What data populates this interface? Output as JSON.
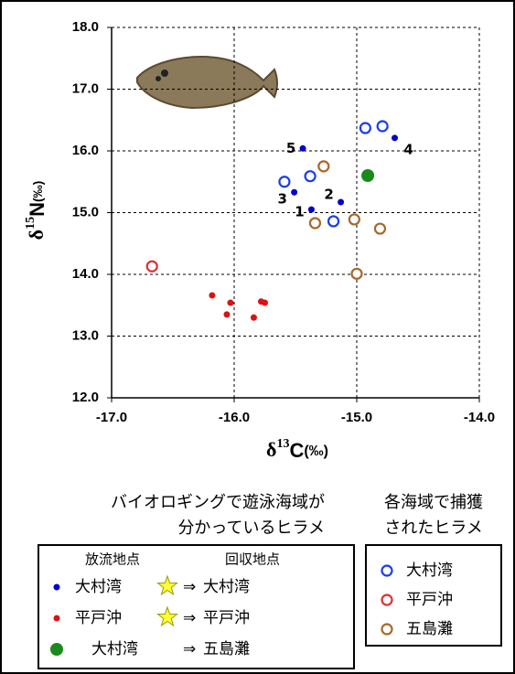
{
  "chart_data": {
    "type": "scatter",
    "y_label": {
      "prefix": "δ",
      "sup": "15",
      "main": "N",
      "unit": "(‰)"
    },
    "x_label": {
      "prefix": "δ",
      "sup": "13",
      "main": "C",
      "unit": "(‰)"
    },
    "xlim": [
      -17,
      -14
    ],
    "ylim": [
      12,
      18
    ],
    "xticks": [
      {
        "value": -17,
        "label": "-17.0"
      },
      {
        "value": -16,
        "label": "-16.0"
      },
      {
        "value": -15,
        "label": "-15.0"
      },
      {
        "value": -14,
        "label": "-14.0"
      }
    ],
    "yticks": [
      {
        "value": 12,
        "label": "12.0"
      },
      {
        "value": 13,
        "label": "13.0"
      },
      {
        "value": 14,
        "label": "14.0"
      },
      {
        "value": 15,
        "label": "15.0"
      },
      {
        "value": 16,
        "label": "16.0"
      },
      {
        "value": 17,
        "label": "17.0"
      },
      {
        "value": 18,
        "label": "18.0"
      }
    ],
    "grid": true,
    "legend_groups": [
      {
        "title": [
          "バイオロギングで遊泳海域が",
          "分かっているヒラメ"
        ],
        "columns": [
          "放流地点",
          "回収地点"
        ],
        "arrow": "⇒"
      },
      {
        "title": [
          "各海域で捕獲",
          "されたヒラメ"
        ]
      }
    ],
    "series": [
      {
        "release": "大村湾",
        "recovery": "大村湾",
        "color": "#0000cc",
        "marker": "dot",
        "x": [
          -15.44,
          -14.69,
          -15.51,
          -15.13,
          -15.37
        ],
        "values": [
          16.04,
          16.21,
          15.33,
          15.17,
          15.05
        ],
        "point_labels": [
          "5",
          "4",
          "3",
          "2",
          "1"
        ],
        "point_label_color": "#e02020"
      },
      {
        "release": "平戸沖",
        "recovery": "平戸沖",
        "color": "#dd1111",
        "marker": "dot",
        "x": [
          -16.18,
          -16.03,
          -16.06,
          -15.78,
          -15.75,
          -15.84
        ],
        "values": [
          13.66,
          13.54,
          13.35,
          13.56,
          13.54,
          13.3
        ]
      },
      {
        "release": "大村湾",
        "recovery": "五島灘",
        "color": "#1a8a1a",
        "marker": "big-dot",
        "x": [
          -14.91
        ],
        "values": [
          15.6
        ]
      },
      {
        "name": "大村湾",
        "color": "#1a3ee6",
        "marker": "open",
        "x": [
          -15.59,
          -15.38,
          -14.93,
          -14.79,
          -15.19
        ],
        "values": [
          15.5,
          15.59,
          16.37,
          16.4,
          14.86
        ]
      },
      {
        "name": "平戸沖",
        "color": "#e03030",
        "marker": "open",
        "x": [
          -16.67
        ],
        "values": [
          14.13
        ]
      },
      {
        "name": "五島灘",
        "color": "#a8672a",
        "marker": "open",
        "x": [
          -15.27,
          -15.34,
          -15.02,
          -14.81,
          -15.0
        ],
        "values": [
          15.75,
          14.83,
          14.89,
          14.74,
          14.01
        ]
      }
    ]
  }
}
